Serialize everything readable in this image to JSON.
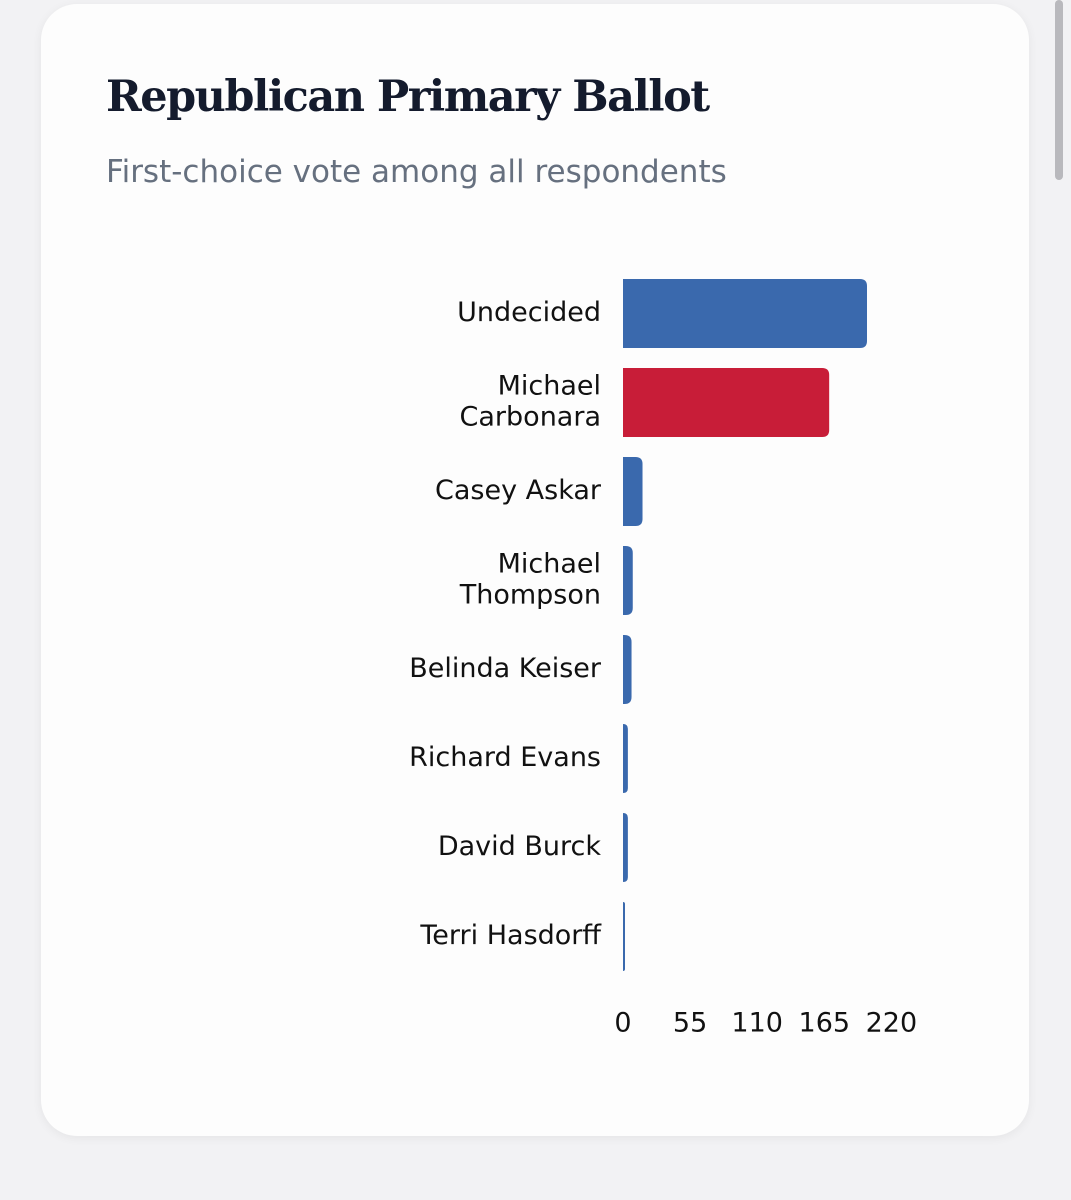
{
  "card": {
    "title": "Republican Primary Ballot",
    "subtitle": "First-choice vote among all respondents"
  },
  "chart_data": {
    "type": "bar",
    "orientation": "horizontal",
    "categories": [
      [
        "Undecided"
      ],
      [
        "Michael",
        "Carbonara"
      ],
      [
        "Casey Askar"
      ],
      [
        "Michael",
        "Thompson"
      ],
      [
        "Belinda Keiser"
      ],
      [
        "Richard Evans"
      ],
      [
        "David Burck"
      ],
      [
        "Terri Hasdorff"
      ]
    ],
    "values": [
      200,
      169,
      16,
      8,
      7,
      4,
      4,
      1
    ],
    "colors": [
      "#3a69ad",
      "#c81d38",
      "#3a69ad",
      "#3a69ad",
      "#3a69ad",
      "#3a69ad",
      "#3a69ad",
      "#3a69ad"
    ],
    "xticks": [
      0,
      55,
      110,
      165,
      220
    ],
    "xlim": [
      0,
      220
    ],
    "title": "",
    "xlabel": "",
    "ylabel": "",
    "grid": false,
    "legend": "none"
  }
}
